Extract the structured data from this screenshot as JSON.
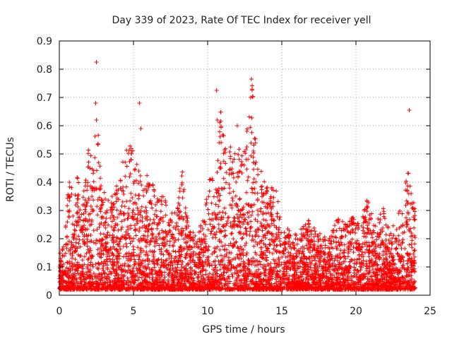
{
  "chart_data": {
    "type": "scatter",
    "title": "Day 339 of 2023, Rate Of TEC Index for receiver yell",
    "xlabel": "GPS time / hours",
    "ylabel": "ROTI / TECUs",
    "xlim": [
      0,
      25
    ],
    "ylim": [
      0,
      0.9
    ],
    "xticks": [
      0,
      5,
      10,
      15,
      20,
      25
    ],
    "yticks": [
      0,
      0.1,
      0.2,
      0.3,
      0.4,
      0.5,
      0.6,
      0.7,
      0.8,
      0.9
    ],
    "xtick_labels": [
      "0",
      "5",
      "10",
      "15",
      "20",
      "25"
    ],
    "ytick_labels": [
      "0",
      "0.1",
      "0.2",
      "0.3",
      "0.4",
      "0.5",
      "0.6",
      "0.7",
      "0.8",
      "0.9"
    ],
    "grid": true,
    "marker": "+",
    "color": "#ff0000",
    "series": [
      {
        "name": "ROTI",
        "x_range": [
          0,
          24
        ],
        "envelope": [
          [
            0.0,
            0.14
          ],
          [
            0.3,
            0.2
          ],
          [
            0.7,
            0.44
          ],
          [
            1.0,
            0.3
          ],
          [
            1.2,
            0.46
          ],
          [
            1.5,
            0.3
          ],
          [
            2.0,
            0.53
          ],
          [
            2.3,
            0.45
          ],
          [
            2.5,
            0.68
          ],
          [
            2.8,
            0.42
          ],
          [
            3.2,
            0.33
          ],
          [
            4.0,
            0.4
          ],
          [
            4.4,
            0.5
          ],
          [
            4.8,
            0.55
          ],
          [
            5.2,
            0.48
          ],
          [
            5.6,
            0.4
          ],
          [
            6.0,
            0.45
          ],
          [
            6.5,
            0.36
          ],
          [
            7.0,
            0.35
          ],
          [
            7.5,
            0.3
          ],
          [
            8.0,
            0.33
          ],
          [
            8.3,
            0.44
          ],
          [
            8.7,
            0.25
          ],
          [
            9.3,
            0.2
          ],
          [
            9.8,
            0.3
          ],
          [
            10.2,
            0.45
          ],
          [
            10.5,
            0.4
          ],
          [
            10.9,
            0.7
          ],
          [
            11.3,
            0.5
          ],
          [
            11.8,
            0.6
          ],
          [
            12.2,
            0.5
          ],
          [
            12.6,
            0.56
          ],
          [
            13.0,
            0.75
          ],
          [
            13.4,
            0.45
          ],
          [
            13.8,
            0.44
          ],
          [
            14.2,
            0.35
          ],
          [
            14.5,
            0.42
          ],
          [
            15.0,
            0.25
          ],
          [
            16.0,
            0.22
          ],
          [
            16.8,
            0.27
          ],
          [
            17.5,
            0.22
          ],
          [
            18.2,
            0.2
          ],
          [
            18.8,
            0.3
          ],
          [
            19.3,
            0.25
          ],
          [
            19.8,
            0.28
          ],
          [
            20.3,
            0.25
          ],
          [
            20.8,
            0.35
          ],
          [
            21.3,
            0.25
          ],
          [
            21.8,
            0.32
          ],
          [
            22.3,
            0.22
          ],
          [
            22.8,
            0.28
          ],
          [
            23.3,
            0.4
          ],
          [
            23.6,
            0.46
          ],
          [
            24.0,
            0.3
          ]
        ],
        "baseline_min": 0.02,
        "outliers": [
          {
            "x": 2.5,
            "y": 0.825
          },
          {
            "x": 2.45,
            "y": 0.68
          },
          {
            "x": 2.5,
            "y": 0.62
          },
          {
            "x": 5.4,
            "y": 0.68
          },
          {
            "x": 5.5,
            "y": 0.59
          },
          {
            "x": 10.6,
            "y": 0.725
          },
          {
            "x": 10.65,
            "y": 0.62
          },
          {
            "x": 12.95,
            "y": 0.765
          },
          {
            "x": 12.9,
            "y": 0.7
          },
          {
            "x": 12.0,
            "y": 0.6
          },
          {
            "x": 23.6,
            "y": 0.655
          }
        ]
      }
    ]
  }
}
